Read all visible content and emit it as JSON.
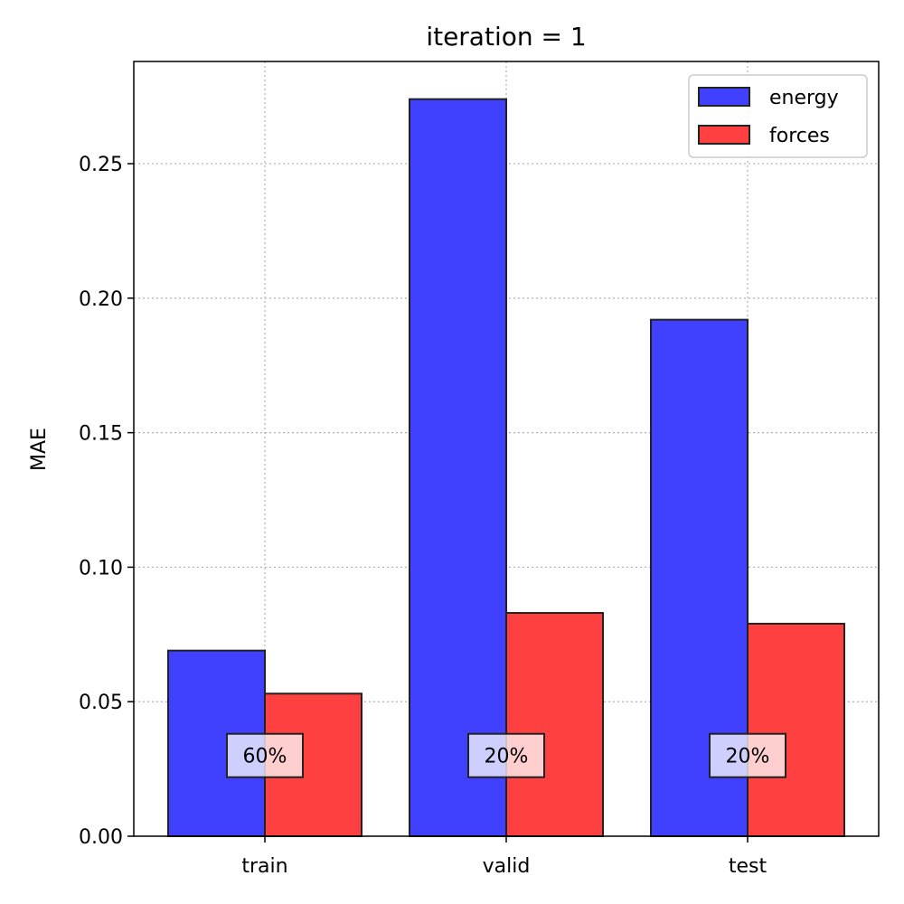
{
  "chart_data": {
    "type": "bar",
    "title": "iteration = 1",
    "xlabel": "",
    "ylabel": "MAE",
    "categories": [
      "train",
      "valid",
      "test"
    ],
    "series": [
      {
        "name": "energy",
        "color": "#4040ff",
        "values": [
          0.069,
          0.274,
          0.192
        ]
      },
      {
        "name": "forces",
        "color": "#ff4040",
        "values": [
          0.053,
          0.083,
          0.079
        ]
      }
    ],
    "ylim": [
      0,
      0.288
    ],
    "yticks": [
      0.0,
      0.05,
      0.1,
      0.15,
      0.2,
      0.25
    ],
    "ytick_labels": [
      "0.00",
      "0.05",
      "0.10",
      "0.15",
      "0.20",
      "0.25"
    ],
    "grid": true,
    "legend_position": "top-right",
    "annotations": [
      {
        "category": "train",
        "text": "60%",
        "y": 0.03
      },
      {
        "category": "valid",
        "text": "20%",
        "y": 0.03
      },
      {
        "category": "test",
        "text": "20%",
        "y": 0.03
      }
    ]
  }
}
